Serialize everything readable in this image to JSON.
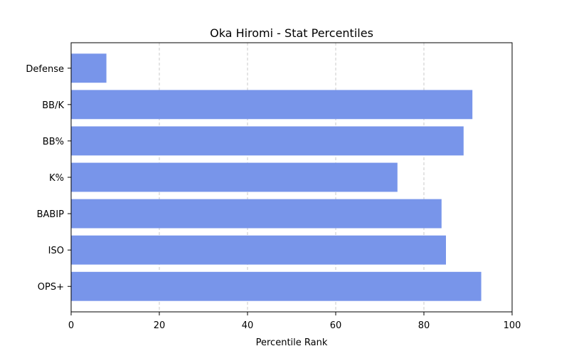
{
  "chart_data": {
    "type": "bar",
    "orientation": "horizontal",
    "title": "Oka Hiromi - Stat Percentiles",
    "xlabel": "Percentile Rank",
    "ylabel": "",
    "xlim": [
      0,
      100
    ],
    "xticks": [
      0,
      20,
      40,
      60,
      80,
      100
    ],
    "grid": "x-dashed",
    "bar_color": "#7895EA",
    "categories": [
      "OPS+",
      "ISO",
      "BABIP",
      "K%",
      "BB%",
      "BB/K",
      "Defense"
    ],
    "values": [
      93,
      85,
      84,
      74,
      89,
      91,
      8
    ]
  }
}
